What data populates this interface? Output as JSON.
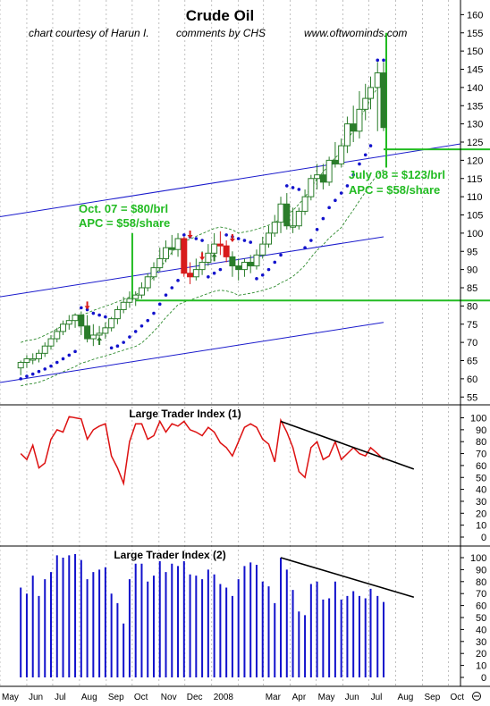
{
  "header": {
    "title": "Crude Oil",
    "credit_left": "chart courtesy of Harun I.",
    "credit_mid": "comments by CHS",
    "credit_right": "www.oftwominds.com"
  },
  "colors": {
    "price_up": "#2a7d2a",
    "price_down": "#d81b1b",
    "sar_dots": "#1212cc",
    "channel_lines": "#1a1acc",
    "envelope": "#2e8b2e",
    "annotation": "#22bb22",
    "lti1_line": "#dd1111",
    "lti2_bars": "#1111cc",
    "trendline": "#000000",
    "grid": "#b0b0b0"
  },
  "axis": {
    "months": [
      "May",
      "Jun",
      "Jul",
      "Aug",
      "Sep",
      "Oct",
      "Nov",
      "Dec",
      "2008",
      "Mar",
      "Apr",
      "May",
      "Jun",
      "Jul",
      "Aug",
      "Sep",
      "Oct"
    ],
    "price_ticks": [
      "55",
      "60",
      "65",
      "70",
      "75",
      "80",
      "85",
      "90",
      "95",
      "100",
      "105",
      "110",
      "115",
      "120",
      "125",
      "130",
      "135",
      "140",
      "145",
      "150",
      "155",
      "160"
    ],
    "index_ticks": [
      "0",
      "10",
      "20",
      "30",
      "40",
      "50",
      "60",
      "70",
      "80",
      "90",
      "100"
    ]
  },
  "annotations": {
    "oct07_line1": "Oct. 07  = $80/brl",
    "oct07_line2": "APC = $58/share",
    "jul08_line1": "July 08  = $123/brl",
    "jul08_line2": "APC = $58/share"
  },
  "panels": {
    "lti1_title": "Large Trader Index (1)",
    "lti2_title": "Large Trader Index (2)"
  },
  "chart_data": [
    {
      "type": "candlestick",
      "title": "Crude Oil",
      "ylabel": "",
      "y_scale": "linear",
      "ylim": [
        52,
        163
      ],
      "grid": "vertical month lines, dotted",
      "x": [
        "2007-05-25",
        "2007-06-01",
        "2007-06-08",
        "2007-06-15",
        "2007-06-22",
        "2007-06-29",
        "2007-07-06",
        "2007-07-13",
        "2007-07-20",
        "2007-07-27",
        "2007-08-03",
        "2007-08-10",
        "2007-08-17",
        "2007-08-24",
        "2007-08-31",
        "2007-09-07",
        "2007-09-14",
        "2007-09-21",
        "2007-09-28",
        "2007-10-05",
        "2007-10-12",
        "2007-10-19",
        "2007-10-26",
        "2007-11-02",
        "2007-11-09",
        "2007-11-16",
        "2007-11-23",
        "2007-11-30",
        "2007-12-07",
        "2007-12-14",
        "2007-12-21",
        "2007-12-28",
        "2008-01-04",
        "2008-01-11",
        "2008-01-18",
        "2008-01-25",
        "2008-02-01",
        "2008-02-08",
        "2008-02-15",
        "2008-02-22",
        "2008-02-29",
        "2008-03-07",
        "2008-03-14",
        "2008-03-21",
        "2008-03-28",
        "2008-04-04",
        "2008-04-11",
        "2008-04-18",
        "2008-04-25",
        "2008-05-02",
        "2008-05-09",
        "2008-05-16",
        "2008-05-23",
        "2008-05-30",
        "2008-06-06",
        "2008-06-13",
        "2008-06-20",
        "2008-06-27",
        "2008-07-03",
        "2008-07-11",
        "2008-07-18"
      ],
      "open": [
        63.0,
        64.5,
        65.5,
        65.5,
        67.0,
        69.0,
        71.0,
        73.0,
        75.0,
        76.0,
        77.5,
        74.5,
        71.0,
        72.0,
        72.5,
        74.0,
        76.5,
        79.0,
        81.0,
        82.0,
        83.0,
        85.0,
        88.0,
        90.5,
        93.0,
        96.0,
        95.5,
        98.5,
        89.0,
        88.0,
        90.0,
        92.0,
        94.5,
        97.0,
        96.5,
        93.5,
        91.0,
        90.0,
        92.0,
        91.0,
        94.0,
        97.0,
        100.0,
        103.0,
        108.0,
        102.0,
        102.0,
        106.0,
        110.0,
        115.0,
        116.0,
        114.0,
        120.0,
        119.0,
        124.0,
        130.0,
        128.0,
        134.0,
        137.0,
        140.0,
        144.0
      ],
      "high": [
        65.0,
        66.5,
        67.0,
        68.0,
        70.0,
        72.0,
        74.0,
        76.0,
        77.5,
        78.0,
        78.5,
        77.5,
        75.0,
        74.5,
        75.5,
        77.0,
        80.0,
        82.5,
        84.0,
        84.0,
        86.5,
        89.0,
        92.0,
        96.0,
        98.0,
        99.5,
        100.0,
        99.0,
        92.0,
        93.0,
        95.0,
        97.0,
        100.0,
        100.5,
        98.0,
        95.0,
        93.0,
        93.0,
        94.0,
        95.5,
        99.0,
        102.0,
        105.0,
        110.0,
        111.0,
        107.0,
        107.0,
        112.0,
        116.0,
        119.0,
        119.0,
        121.0,
        125.0,
        126.0,
        132.0,
        135.0,
        139.0,
        141.0,
        143.0,
        147.0,
        147.0
      ],
      "low": [
        61.0,
        63.0,
        64.0,
        64.5,
        66.0,
        68.0,
        70.0,
        72.0,
        73.5,
        74.0,
        72.0,
        70.0,
        69.0,
        70.0,
        71.0,
        73.0,
        75.0,
        78.0,
        79.5,
        80.0,
        82.0,
        84.0,
        87.0,
        89.5,
        92.0,
        94.0,
        93.5,
        88.0,
        86.0,
        87.0,
        88.5,
        91.0,
        93.0,
        94.0,
        92.0,
        88.0,
        87.0,
        88.0,
        89.0,
        90.0,
        93.0,
        96.0,
        99.0,
        100.0,
        101.0,
        100.0,
        101.0,
        105.0,
        109.0,
        112.0,
        112.0,
        113.0,
        118.0,
        118.0,
        122.0,
        125.0,
        126.0,
        131.0,
        134.0,
        128.0,
        128.0
      ],
      "close": [
        64.5,
        65.5,
        65.5,
        67.0,
        69.0,
        71.0,
        73.0,
        75.0,
        76.0,
        77.5,
        74.5,
        71.0,
        72.0,
        72.5,
        74.0,
        76.5,
        79.0,
        81.0,
        82.0,
        83.0,
        85.0,
        88.0,
        90.5,
        93.0,
        96.0,
        95.5,
        98.5,
        89.0,
        88.0,
        90.0,
        92.0,
        94.5,
        97.0,
        96.5,
        93.5,
        91.0,
        90.0,
        92.0,
        91.0,
        94.0,
        97.0,
        100.0,
        103.0,
        108.0,
        102.0,
        102.0,
        106.0,
        110.0,
        115.0,
        116.0,
        114.0,
        120.0,
        119.0,
        124.0,
        130.0,
        128.0,
        134.0,
        137.0,
        140.0,
        144.0,
        129.0
      ],
      "sar": [
        60,
        60.7,
        61.3,
        62,
        62.7,
        63.5,
        64.5,
        65.5,
        66.5,
        67.5,
        79.5,
        79,
        78,
        77.5,
        77,
        68.5,
        69,
        70,
        71.5,
        73,
        74.5,
        76,
        78,
        80.5,
        83,
        85,
        87,
        99.5,
        99,
        98.5,
        98,
        88,
        89,
        90,
        99.5,
        99,
        98.5,
        98,
        97.5,
        87.5,
        88.5,
        90,
        92,
        94,
        113,
        112.5,
        112,
        96,
        98,
        101,
        104,
        107,
        109,
        111,
        113,
        116,
        119,
        121.5,
        124,
        147.5,
        147.5
      ],
      "channel_top_line": {
        "x": [
          "2007-05-01",
          "2008-10-15"
        ],
        "y": [
          104.5,
          124.5
        ]
      },
      "channel_mid_line": {
        "x": [
          "2007-05-01",
          "2008-07-18"
        ],
        "y": [
          82.5,
          99
        ]
      },
      "channel_low_line": {
        "x": [
          "2007-05-01",
          "2008-07-18"
        ],
        "y": [
          59,
          75.5
        ]
      },
      "horizontal_lines": [
        {
          "label": "Oct. 07  = $80/brl",
          "y": 81.5,
          "x_from": "2007-10-05"
        },
        {
          "label": "July 08  = $123/brl",
          "y": 123,
          "x_from": "2008-07-18"
        }
      ],
      "vertical_markers": [
        {
          "x": "2007-09-28",
          "y": [
            81.5,
            100
          ]
        },
        {
          "x": "2008-07-18",
          "y": [
            118,
            155
          ]
        }
      ]
    },
    {
      "type": "line",
      "title": "Large Trader Index (1)",
      "ylim": [
        0,
        100
      ],
      "x": [
        "2007-05-25",
        "2007-06-01",
        "2007-06-08",
        "2007-06-15",
        "2007-06-22",
        "2007-06-29",
        "2007-07-06",
        "2007-07-13",
        "2007-07-20",
        "2007-07-27",
        "2007-08-03",
        "2007-08-10",
        "2007-08-17",
        "2007-08-24",
        "2007-08-31",
        "2007-09-07",
        "2007-09-14",
        "2007-09-21",
        "2007-09-28",
        "2007-10-05",
        "2007-10-12",
        "2007-10-19",
        "2007-10-26",
        "2007-11-02",
        "2007-11-09",
        "2007-11-16",
        "2007-11-23",
        "2007-11-30",
        "2007-12-07",
        "2007-12-14",
        "2007-12-21",
        "2007-12-28",
        "2008-01-04",
        "2008-01-11",
        "2008-01-18",
        "2008-01-25",
        "2008-02-01",
        "2008-02-08",
        "2008-02-15",
        "2008-02-22",
        "2008-02-29",
        "2008-03-07",
        "2008-03-14",
        "2008-03-21",
        "2008-03-28",
        "2008-04-04",
        "2008-04-11",
        "2008-04-18",
        "2008-04-25",
        "2008-05-02",
        "2008-05-09",
        "2008-05-16",
        "2008-05-23",
        "2008-05-30",
        "2008-06-06",
        "2008-06-13",
        "2008-06-20",
        "2008-06-27",
        "2008-07-03",
        "2008-07-11",
        "2008-07-18"
      ],
      "values": [
        70,
        65,
        77,
        58,
        62,
        82,
        90,
        88,
        101,
        100,
        99,
        82,
        90,
        93,
        95,
        68,
        58,
        45,
        80,
        95,
        95,
        82,
        85,
        97,
        88,
        95,
        93,
        97,
        90,
        88,
        85,
        92,
        88,
        79,
        75,
        68,
        80,
        92,
        95,
        92,
        82,
        78,
        63,
        98,
        88,
        75,
        55,
        50,
        75,
        80,
        65,
        68,
        80,
        65,
        70,
        75,
        70,
        68,
        75,
        70,
        65
      ],
      "trendline": {
        "x": [
          "2008-03-21",
          "2008-08-22"
        ],
        "y": [
          97,
          57
        ]
      }
    },
    {
      "type": "bar",
      "title": "Large Trader Index (2)",
      "ylim": [
        0,
        100
      ],
      "x": [
        "2007-05-25",
        "2007-06-01",
        "2007-06-08",
        "2007-06-15",
        "2007-06-22",
        "2007-06-29",
        "2007-07-06",
        "2007-07-13",
        "2007-07-20",
        "2007-07-27",
        "2007-08-03",
        "2007-08-10",
        "2007-08-17",
        "2007-08-24",
        "2007-08-31",
        "2007-09-07",
        "2007-09-14",
        "2007-09-21",
        "2007-09-28",
        "2007-10-05",
        "2007-10-12",
        "2007-10-19",
        "2007-10-26",
        "2007-11-02",
        "2007-11-09",
        "2007-11-16",
        "2007-11-23",
        "2007-11-30",
        "2007-12-07",
        "2007-12-14",
        "2007-12-21",
        "2007-12-28",
        "2008-01-04",
        "2008-01-11",
        "2008-01-18",
        "2008-01-25",
        "2008-02-01",
        "2008-02-08",
        "2008-02-15",
        "2008-02-22",
        "2008-02-29",
        "2008-03-07",
        "2008-03-14",
        "2008-03-21",
        "2008-03-28",
        "2008-04-04",
        "2008-04-11",
        "2008-04-18",
        "2008-04-25",
        "2008-05-02",
        "2008-05-09",
        "2008-05-16",
        "2008-05-23",
        "2008-05-30",
        "2008-06-06",
        "2008-06-13",
        "2008-06-20",
        "2008-06-27",
        "2008-07-03",
        "2008-07-11",
        "2008-07-18"
      ],
      "values": [
        75,
        70,
        85,
        68,
        82,
        88,
        102,
        100,
        102,
        103,
        98,
        82,
        88,
        90,
        92,
        70,
        62,
        45,
        82,
        95,
        95,
        80,
        85,
        97,
        88,
        95,
        93,
        97,
        86,
        85,
        82,
        90,
        86,
        78,
        75,
        68,
        82,
        93,
        96,
        94,
        80,
        76,
        62,
        100,
        90,
        73,
        55,
        52,
        78,
        80,
        65,
        66,
        80,
        65,
        68,
        72,
        68,
        66,
        74,
        68,
        63
      ],
      "trendline": {
        "x": [
          "2008-03-21",
          "2008-08-22"
        ],
        "y": [
          100,
          67
        ]
      }
    }
  ]
}
